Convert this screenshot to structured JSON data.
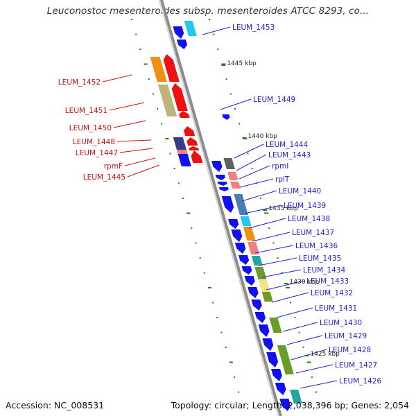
{
  "title": "Leuconostoc mesenteroides subsp. mesenteroides ATCC 8293, co...",
  "footer": {
    "accession": "Accession: NC_008531",
    "topology": "Topology: circular; Length: 2,038,396 bp; Genes: 2,054"
  },
  "colors": {
    "backbone": "#8c8c8c",
    "tick": "#2a7a1a",
    "forward_label": "#2222cc",
    "reverse_label": "#cc1111",
    "blue": "#1111ee",
    "red": "#ee1111",
    "cyan": "#22c8f0",
    "orange": "#f09010",
    "khaki": "#bcb478",
    "navy": "#3a3a8a",
    "gray": "#606060",
    "pink": "#ee8080",
    "steel": "#4a7cb4",
    "olive": "#6a9c2a",
    "teal": "#20a8a0",
    "yellow": "#f4e484"
  },
  "scale_labels": [
    "1445 kbp",
    "1440 kbp",
    "1435 kbp",
    "1430 kbp",
    "1425 kbp"
  ],
  "forward_genes": [
    "LEUM_1453",
    "LEUM_1449",
    "LEUM_1444",
    "LEUM_1443",
    "rpmI",
    "rplT",
    "LEUM_1440",
    "LEUM_1439",
    "LEUM_1438",
    "LEUM_1437",
    "LEUM_1436",
    "LEUM_1435",
    "LEUM_1434",
    "LEUM_1433",
    "LEUM_1432",
    "LEUM_1431",
    "LEUM_1430",
    "LEUM_1429",
    "LEUM_1428",
    "LEUM_1427",
    "LEUM_1426"
  ],
  "reverse_genes": [
    "LEUM_1452",
    "LEUM_1451",
    "LEUM_1450",
    "LEUM_1448",
    "LEUM_1447",
    "rpmF",
    "LEUM_1445"
  ]
}
